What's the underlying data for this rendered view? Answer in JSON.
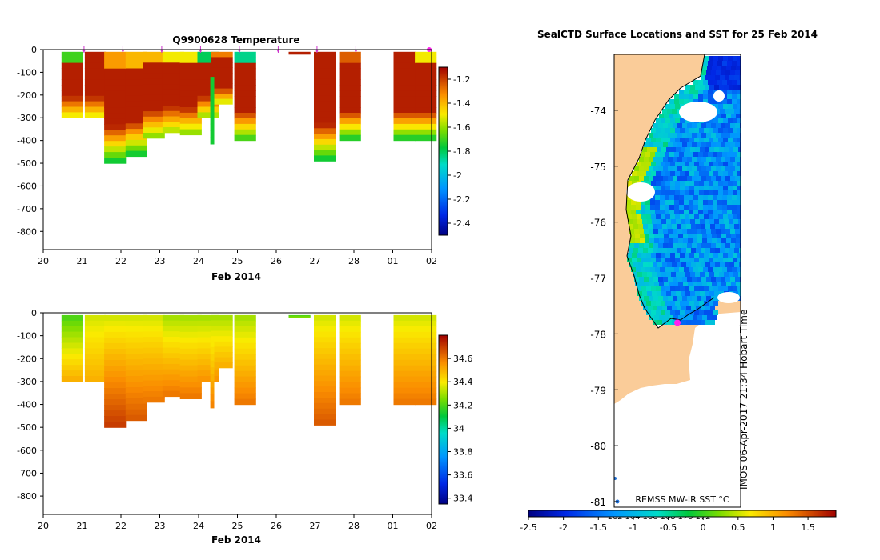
{
  "chart_data": [
    {
      "type": "heatmap",
      "title": "Q9900628  Temperature",
      "xlabel": "Feb 2014",
      "ylabel": "",
      "x_ticks": [
        "20",
        "21",
        "22",
        "23",
        "24",
        "25",
        "26",
        "27",
        "28",
        "01",
        "02"
      ],
      "x_range_days": [
        20,
        30
      ],
      "y_ticks": [
        "0",
        "-100",
        "-200",
        "-300",
        "-400",
        "-500",
        "-600",
        "-700",
        "-800"
      ],
      "ylim": [
        -880,
        0
      ],
      "colorbar": {
        "ticks": [
          "-1.2",
          "-1.4",
          "-1.6",
          "-1.8",
          "-2",
          "-2.2",
          "-2.4"
        ],
        "range": [
          -2.5,
          -1.1
        ]
      },
      "profiles": [
        {
          "day": 20.75,
          "depth": 300,
          "top": -1.7,
          "bottom": -1.6,
          "mid": -1.15
        },
        {
          "day": 21.35,
          "depth": 300,
          "top": -1.15,
          "bottom": -1.6,
          "mid": -1.15
        },
        {
          "day": 21.85,
          "depth": 500,
          "top": -1.35,
          "bottom": -1.85,
          "mid": -1.15
        },
        {
          "day": 22.4,
          "depth": 470,
          "top": -1.4,
          "bottom": -1.85,
          "mid": -1.15
        },
        {
          "day": 22.85,
          "depth": 390,
          "top": -1.4,
          "bottom": -1.7,
          "mid": -1.15
        },
        {
          "day": 23.35,
          "depth": 365,
          "top": -1.5,
          "bottom": -1.65,
          "mid": -1.15
        },
        {
          "day": 23.8,
          "depth": 375,
          "top": -1.5,
          "bottom": -1.7,
          "mid": -1.15
        },
        {
          "day": 24.25,
          "depth": 300,
          "top": -1.8,
          "bottom": -1.7,
          "mid": -1.15
        },
        {
          "day": 24.6,
          "depth": 240,
          "top": -1.3,
          "bottom": -1.65,
          "mid": -1.15
        },
        {
          "day": 25.2,
          "depth": 400,
          "top": -1.85,
          "bottom": -1.8,
          "mid": -1.15
        },
        {
          "day": 26.6,
          "depth": 20,
          "top": -1.15,
          "bottom": -1.15,
          "mid": -1.15
        },
        {
          "day": 27.25,
          "depth": 490,
          "top": -1.15,
          "bottom": -1.85,
          "mid": -1.15
        },
        {
          "day": 27.9,
          "depth": 400,
          "top": -1.25,
          "bottom": -1.85,
          "mid": -1.15
        },
        {
          "day": 29.3,
          "depth": 400,
          "top": -1.15,
          "bottom": -1.85,
          "mid": -1.15
        },
        {
          "day": 29.85,
          "depth": 400,
          "top": -1.5,
          "bottom": -1.85,
          "mid": -1.15
        }
      ],
      "narrow_profile": {
        "day": 24.35,
        "depth": 415
      },
      "markers": {
        "days": [
          21,
          22,
          23,
          24,
          25,
          26,
          27,
          28
        ],
        "end_marker_day": 30
      }
    },
    {
      "type": "heatmap",
      "title": "",
      "xlabel": "Feb 2014",
      "ylabel": "",
      "x_ticks": [
        "20",
        "21",
        "22",
        "23",
        "24",
        "25",
        "26",
        "27",
        "28",
        "01",
        "02"
      ],
      "x_range_days": [
        20,
        30
      ],
      "y_ticks": [
        "0",
        "-100",
        "-200",
        "-300",
        "-400",
        "-500",
        "-600",
        "-700",
        "-800"
      ],
      "ylim": [
        -880,
        0
      ],
      "colorbar": {
        "ticks": [
          "34.6",
          "34.4",
          "34.2",
          "34",
          "33.8",
          "33.6",
          "33.4"
        ],
        "range": [
          33.35,
          34.8
        ]
      },
      "profiles": [
        {
          "day": 20.75,
          "depth": 300,
          "top": 34.2,
          "bottom": 34.5
        },
        {
          "day": 21.35,
          "depth": 300,
          "top": 34.35,
          "bottom": 34.5
        },
        {
          "day": 21.85,
          "depth": 500,
          "top": 34.35,
          "bottom": 34.7
        },
        {
          "day": 22.4,
          "depth": 470,
          "top": 34.35,
          "bottom": 34.65
        },
        {
          "day": 22.85,
          "depth": 390,
          "top": 34.35,
          "bottom": 34.6
        },
        {
          "day": 23.35,
          "depth": 365,
          "top": 34.3,
          "bottom": 34.6
        },
        {
          "day": 23.8,
          "depth": 375,
          "top": 34.3,
          "bottom": 34.6
        },
        {
          "day": 24.25,
          "depth": 300,
          "top": 34.3,
          "bottom": 34.55
        },
        {
          "day": 24.6,
          "depth": 240,
          "top": 34.3,
          "bottom": 34.5
        },
        {
          "day": 25.2,
          "depth": 400,
          "top": 34.3,
          "bottom": 34.6
        },
        {
          "day": 26.6,
          "depth": 20,
          "top": 34.2,
          "bottom": 34.25
        },
        {
          "day": 27.25,
          "depth": 490,
          "top": 34.35,
          "bottom": 34.65
        },
        {
          "day": 27.9,
          "depth": 400,
          "top": 34.35,
          "bottom": 34.6
        },
        {
          "day": 29.3,
          "depth": 400,
          "top": 34.35,
          "bottom": 34.6
        },
        {
          "day": 29.85,
          "depth": 400,
          "top": 34.35,
          "bottom": 34.6
        }
      ],
      "narrow_profile": {
        "day": 24.35,
        "depth": 415
      }
    },
    {
      "type": "heatmap",
      "title": "SealCTD Surface Locations and SST for 25 Feb 2014",
      "xlabel": "",
      "ylabel": "",
      "y_ticks": [
        "-74",
        "-75",
        "-76",
        "-77",
        "-78",
        "-79",
        "-80",
        "-81"
      ],
      "lat_range": [
        -81.1,
        -73.0
      ],
      "x_ticks_top": [
        "162",
        "164",
        "166",
        "168",
        "170",
        "172"
      ],
      "colorbar": {
        "ticks": [
          "-2.5",
          "-2",
          "-1.5",
          "-1",
          "-0.5",
          "0",
          "0.5",
          "1",
          "1.5"
        ],
        "range": [
          -2.5,
          1.9
        ]
      },
      "colorbar_label": "REMSS MW-IR SST °C",
      "credit": "IMOS 06-Apr-2017 21:34 Hobart Time",
      "location_marker_lat": -77.8
    }
  ]
}
